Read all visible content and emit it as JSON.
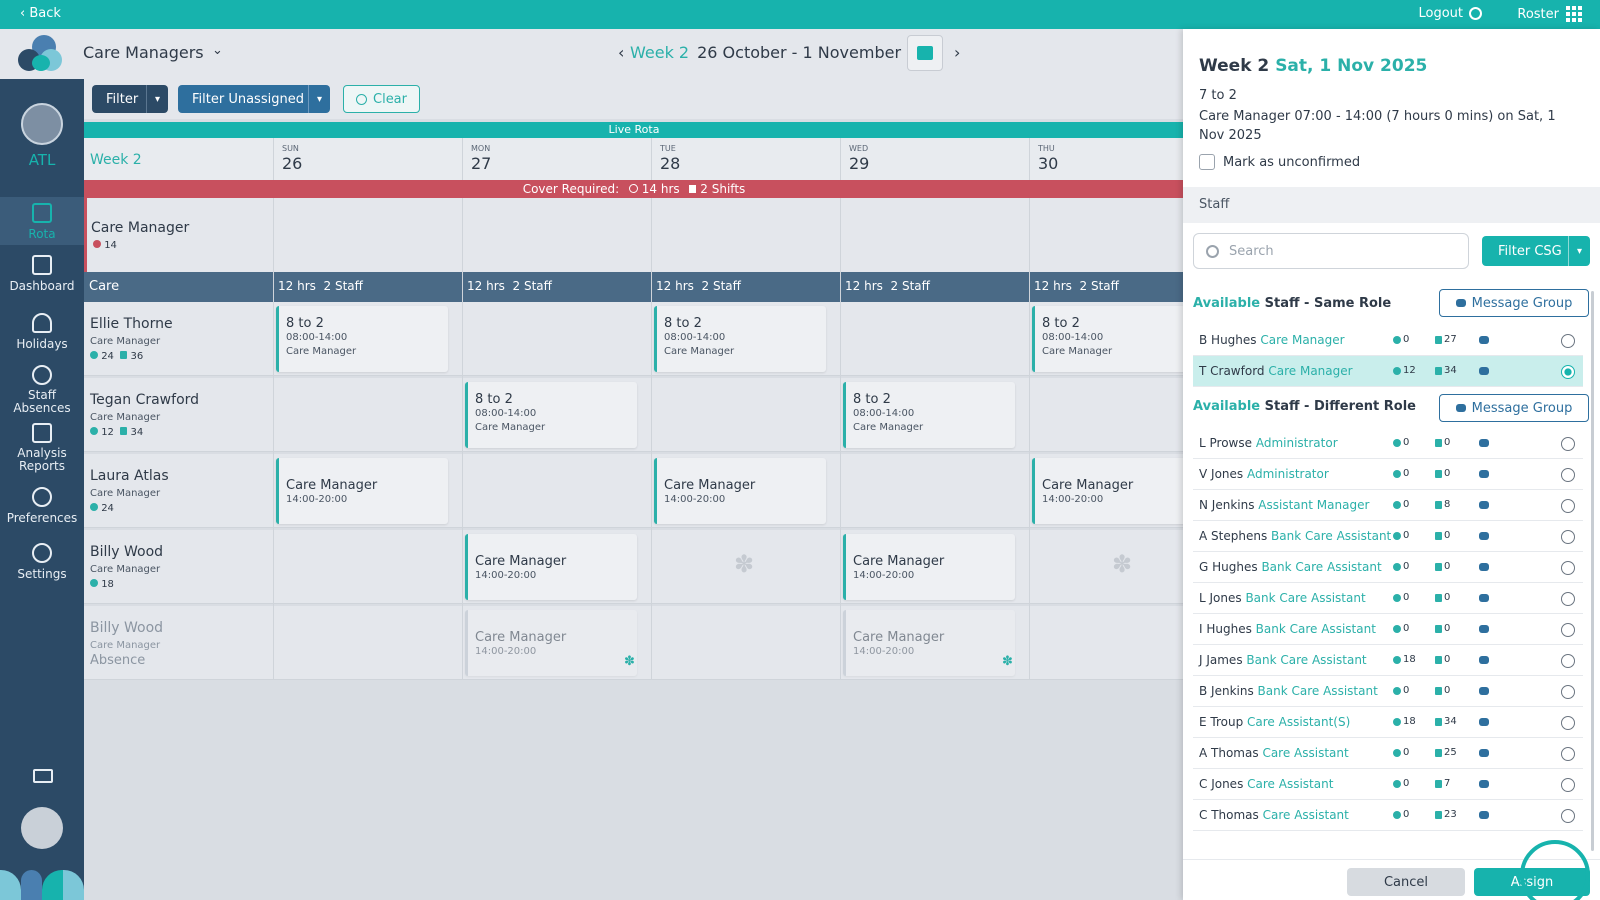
{
  "topbar": {
    "back": "‹ Back",
    "logout": "Logout",
    "roster": "Roster"
  },
  "header": {
    "title": "Care Managers",
    "week": "Week 2",
    "range": "26 October - 1 November"
  },
  "org": {
    "name": "ATL"
  },
  "nav": [
    {
      "label": "Rota",
      "icon": "calendar-icon"
    },
    {
      "label": "Dashboard",
      "icon": "dashboard-icon"
    },
    {
      "label": "Holidays",
      "icon": "palm-tree-icon"
    },
    {
      "label": "Staff Absences",
      "icon": "users-icon"
    },
    {
      "label": "Analysis Reports",
      "icon": "report-icon"
    },
    {
      "label": "Preferences",
      "icon": "user-gear-icon"
    },
    {
      "label": "Settings",
      "icon": "gear-icon"
    }
  ],
  "filters": {
    "filter": "Filter",
    "unassigned": "Filter Unassigned",
    "clear": "Clear"
  },
  "live_rota": "Live Rota",
  "grid": {
    "week": "Week 2",
    "days": [
      {
        "dow": "SUN",
        "num": "26"
      },
      {
        "dow": "MON",
        "num": "27"
      },
      {
        "dow": "TUE",
        "num": "28"
      },
      {
        "dow": "WED",
        "num": "29"
      },
      {
        "dow": "THU",
        "num": "30"
      }
    ],
    "cover": "Cover Required:",
    "cover_hrs": "14 hrs",
    "cover_shifts": "2 Shifts",
    "cm_row": {
      "name": "Care Manager",
      "hrs": "14"
    },
    "care": {
      "label": "Care",
      "hrs": "12 hrs",
      "staff": "2 Staff"
    },
    "staff": [
      {
        "name": "Ellie Thorne",
        "role": "Care Manager",
        "hrs": "24",
        "shifts": "36"
      },
      {
        "name": "Tegan Crawford",
        "role": "Care Manager",
        "hrs": "12",
        "shifts": "34"
      },
      {
        "name": "Laura Atlas",
        "role": "Care Manager",
        "hrs": "24"
      },
      {
        "name": "Billy Wood",
        "role": "Care Manager",
        "hrs": "18"
      },
      {
        "name": "Billy Wood",
        "role": "Care Manager",
        "note": "Absence"
      }
    ],
    "shift_a": {
      "title": "8 to 2",
      "hours": "08:00-14:00",
      "role": "Care Manager"
    },
    "shift_b": {
      "title": "Care Manager",
      "hours": "14:00-20:00"
    }
  },
  "panel": {
    "week": "Week 2",
    "date": "Sat, 1 Nov 2025",
    "shift": "7 to 2",
    "desc": "Care Manager 07:00 - 14:00 (7 hours 0 mins) on Sat, 1 Nov 2025",
    "unconfirmed": "Mark as unconfirmed",
    "staff_label": "Staff",
    "search_placeholder": "Search",
    "filter_csg": "Filter CSG",
    "same_role_available": "Available",
    "same_role_rest": "Staff - Same Role",
    "diff_role_available": "Available",
    "diff_role_rest": "Staff - Different Role",
    "message_group": "Message Group",
    "same_role": [
      {
        "name": "B Hughes",
        "role": "Care Manager",
        "hrs": "0",
        "shifts": "27",
        "selected": false
      },
      {
        "name": "T Crawford",
        "role": "Care Manager",
        "hrs": "12",
        "shifts": "34",
        "selected": true
      }
    ],
    "diff_role": [
      {
        "name": "L Prowse",
        "role": "Administrator",
        "hrs": "0",
        "shifts": "0"
      },
      {
        "name": "V Jones",
        "role": "Administrator",
        "hrs": "0",
        "shifts": "0"
      },
      {
        "name": "N Jenkins",
        "role": "Assistant Manager",
        "hrs": "0",
        "shifts": "8"
      },
      {
        "name": "A Stephens",
        "role": "Bank Care Assistant",
        "hrs": "0",
        "shifts": "0"
      },
      {
        "name": "G Hughes",
        "role": "Bank Care Assistant",
        "hrs": "0",
        "shifts": "0"
      },
      {
        "name": "L Jones",
        "role": "Bank Care Assistant",
        "hrs": "0",
        "shifts": "0"
      },
      {
        "name": "I Hughes",
        "role": "Bank Care Assistant",
        "hrs": "0",
        "shifts": "0"
      },
      {
        "name": "J James",
        "role": "Bank Care Assistant",
        "hrs": "18",
        "shifts": "0"
      },
      {
        "name": "B Jenkins",
        "role": "Bank Care Assistant",
        "hrs": "0",
        "shifts": "0"
      },
      {
        "name": "E Troup",
        "role": "Care Assistant(S)",
        "hrs": "18",
        "shifts": "34"
      },
      {
        "name": "A Thomas",
        "role": "Care Assistant",
        "hrs": "0",
        "shifts": "25"
      },
      {
        "name": "C Jones",
        "role": "Care Assistant",
        "hrs": "0",
        "shifts": "7"
      },
      {
        "name": "C Thomas",
        "role": "Care Assistant",
        "hrs": "0",
        "shifts": "23"
      }
    ],
    "cancel": "Cancel",
    "assign": "Assign"
  },
  "colors": {
    "teal": "#17b3ad",
    "navy": "#2c4a66",
    "cover_red": "#c8505e"
  }
}
